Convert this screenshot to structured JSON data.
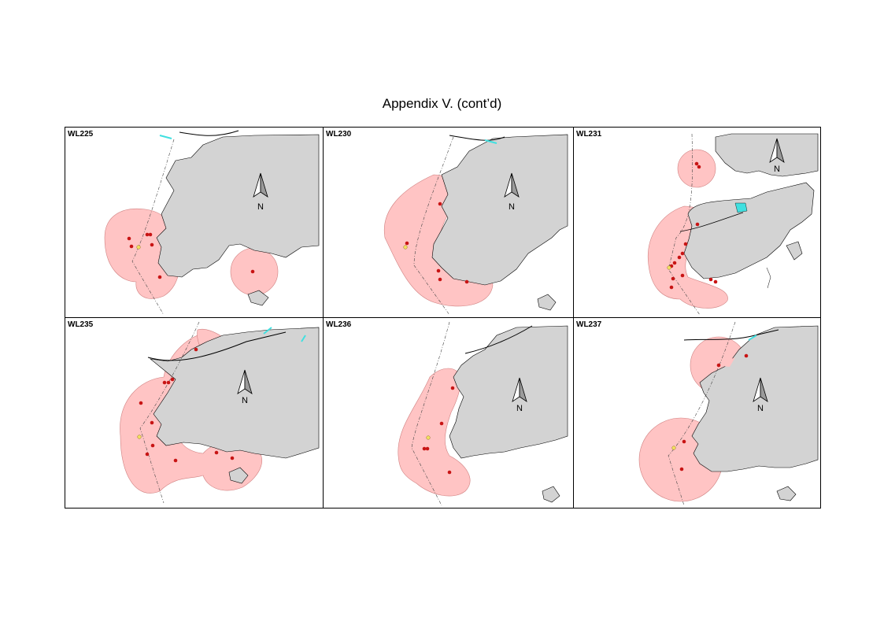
{
  "title": "Appendix V.  (cont’d)",
  "north_label": "N",
  "colors": {
    "land": "#d3d3d3",
    "buffer": "#ffc4c4",
    "point": "#c81414",
    "point_highlight": "#f0e060",
    "water_feature": "#40e0e0"
  },
  "panels": [
    {
      "label": "WL225"
    },
    {
      "label": "WL230"
    },
    {
      "label": "WL231"
    },
    {
      "label": "WL235"
    },
    {
      "label": "WL236"
    },
    {
      "label": "WL237"
    }
  ]
}
